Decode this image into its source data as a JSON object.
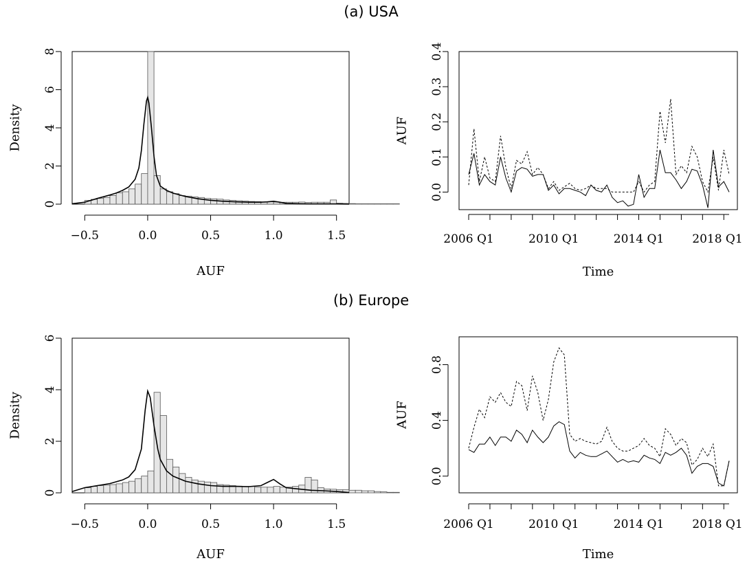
{
  "chart_data": [
    {
      "type": "histogram",
      "panel": "(a)",
      "title": "USA",
      "xlabel": "AUF",
      "ylabel": "Density",
      "xlim": [
        -0.6,
        1.6
      ],
      "ylim": [
        0,
        8
      ],
      "xticks": [
        -0.5,
        0.0,
        0.5,
        1.0,
        1.5
      ],
      "xtick_labels": [
        "−0.5",
        "0.0",
        "0.5",
        "1.0",
        "1.5"
      ],
      "yticks": [
        0,
        2,
        4,
        6,
        8
      ],
      "ytick_labels": [
        "0",
        "2",
        "4",
        "6",
        "8"
      ],
      "bin_width": 0.05,
      "bin_start": -0.5,
      "densities": [
        0.2,
        0.25,
        0.3,
        0.35,
        0.45,
        0.6,
        0.65,
        0.8,
        1.05,
        1.6,
        8.0,
        1.5,
        0.8,
        0.65,
        0.55,
        0.45,
        0.42,
        0.38,
        0.35,
        0.3,
        0.28,
        0.26,
        0.22,
        0.2,
        0.18,
        0.16,
        0.14,
        0.13,
        0.12,
        0.12,
        0.11,
        0.1,
        0.1,
        0.1,
        0.11,
        0.09,
        0.1,
        0.1,
        0.1,
        0.22,
        0.05,
        0.04,
        0.03,
        0.02,
        0.02,
        0.02,
        0.02,
        0.02,
        0.02,
        0.02
      ],
      "kde": {
        "x": [
          -0.6,
          -0.5,
          -0.4,
          -0.3,
          -0.25,
          -0.2,
          -0.15,
          -0.1,
          -0.07,
          -0.05,
          -0.03,
          -0.01,
          0.0,
          0.01,
          0.03,
          0.05,
          0.07,
          0.1,
          0.15,
          0.2,
          0.3,
          0.4,
          0.5,
          0.6,
          0.7,
          0.8,
          0.9,
          0.95,
          1.0,
          1.05,
          1.1,
          1.2,
          1.3,
          1.4,
          1.5,
          1.6
        ],
        "y": [
          0.02,
          0.1,
          0.3,
          0.48,
          0.58,
          0.72,
          0.9,
          1.3,
          1.9,
          2.8,
          4.2,
          5.4,
          5.6,
          5.3,
          4.0,
          2.5,
          1.5,
          0.95,
          0.72,
          0.58,
          0.4,
          0.28,
          0.2,
          0.15,
          0.12,
          0.1,
          0.1,
          0.12,
          0.15,
          0.1,
          0.04,
          0.02,
          0.01,
          0.01,
          0.01,
          0.0
        ]
      }
    },
    {
      "type": "line",
      "panel": "(a)",
      "title": "USA",
      "xlabel": "Time",
      "ylabel": "AUF",
      "ylim": [
        -0.05,
        0.4
      ],
      "yticks": [
        0.0,
        0.1,
        0.2,
        0.3,
        0.4
      ],
      "ytick_labels": [
        "0.0",
        "0.1",
        "0.2",
        "0.3",
        "0.4"
      ],
      "xticks": [
        0,
        16,
        32,
        48
      ],
      "xtick_labels": [
        "2006 Q1",
        "2010 Q1",
        "2014 Q1",
        "2018 Q1"
      ],
      "series": [
        {
          "style": "solid",
          "values": [
            0.05,
            0.11,
            0.02,
            0.05,
            0.03,
            0.02,
            0.1,
            0.04,
            0.0,
            0.06,
            0.07,
            0.065,
            0.045,
            0.05,
            0.05,
            0.005,
            0.02,
            -0.005,
            0.01,
            0.01,
            0.005,
            0.0,
            -0.01,
            0.02,
            0.005,
            0.0,
            0.02,
            -0.015,
            -0.03,
            -0.025,
            -0.04,
            -0.035,
            0.05,
            -0.015,
            0.01,
            0.01,
            0.12,
            0.055,
            0.055,
            0.035,
            0.01,
            0.03,
            0.065,
            0.06,
            0.02,
            -0.045,
            0.12,
            0.015,
            0.03,
            0.0
          ]
        },
        {
          "style": "dashed",
          "values": [
            0.02,
            0.18,
            0.03,
            0.1,
            0.04,
            0.03,
            0.16,
            0.07,
            0.01,
            0.09,
            0.08,
            0.115,
            0.05,
            0.07,
            0.05,
            0.01,
            0.03,
            0.005,
            0.015,
            0.025,
            0.01,
            0.005,
            0.01,
            0.02,
            0.01,
            0.01,
            0.01,
            0.0,
            0.0,
            0.0,
            0.0,
            0.0,
            0.03,
            0.0,
            0.02,
            0.03,
            0.23,
            0.14,
            0.265,
            0.05,
            0.075,
            0.055,
            0.13,
            0.1,
            0.03,
            0.0,
            0.1,
            0.005,
            0.12,
            0.05
          ]
        }
      ]
    },
    {
      "type": "histogram",
      "panel": "(b)",
      "title": "Europe",
      "xlabel": "AUF",
      "ylabel": "Density",
      "xlim": [
        -0.6,
        1.6
      ],
      "ylim": [
        0,
        6
      ],
      "xticks": [
        -0.5,
        0.0,
        0.5,
        1.0,
        1.5
      ],
      "xtick_labels": [
        "−0.5",
        "0.0",
        "0.5",
        "1.0",
        "1.5"
      ],
      "yticks": [
        0,
        2,
        4,
        6
      ],
      "ytick_labels": [
        "0",
        "2",
        "4",
        "6"
      ],
      "bin_width": 0.05,
      "bin_start": -0.5,
      "densities": [
        0.2,
        0.25,
        0.28,
        0.3,
        0.32,
        0.35,
        0.4,
        0.45,
        0.55,
        0.65,
        0.85,
        3.9,
        3.0,
        1.3,
        1.0,
        0.75,
        0.6,
        0.5,
        0.45,
        0.42,
        0.4,
        0.32,
        0.3,
        0.28,
        0.26,
        0.25,
        0.25,
        0.22,
        0.22,
        0.22,
        0.25,
        0.22,
        0.22,
        0.25,
        0.3,
        0.6,
        0.5,
        0.2,
        0.15,
        0.14,
        0.12,
        0.12,
        0.1,
        0.1,
        0.08,
        0.08,
        0.05,
        0.04,
        0.02,
        0.02
      ],
      "kde": {
        "x": [
          -0.6,
          -0.5,
          -0.4,
          -0.3,
          -0.2,
          -0.15,
          -0.1,
          -0.05,
          -0.02,
          0.0,
          0.02,
          0.05,
          0.08,
          0.1,
          0.15,
          0.2,
          0.3,
          0.4,
          0.5,
          0.6,
          0.7,
          0.8,
          0.9,
          0.95,
          1.0,
          1.05,
          1.1,
          1.2,
          1.3,
          1.4,
          1.5,
          1.6
        ],
        "y": [
          0.05,
          0.2,
          0.28,
          0.36,
          0.5,
          0.62,
          0.9,
          1.7,
          3.2,
          3.95,
          3.7,
          2.6,
          1.7,
          1.3,
          0.85,
          0.65,
          0.45,
          0.35,
          0.28,
          0.25,
          0.25,
          0.24,
          0.28,
          0.4,
          0.52,
          0.35,
          0.2,
          0.15,
          0.1,
          0.08,
          0.05,
          0.01
        ]
      }
    },
    {
      "type": "line",
      "panel": "(b)",
      "title": "Europe",
      "xlabel": "Time",
      "ylabel": "AUF",
      "ylim": [
        -0.12,
        1.0
      ],
      "yticks": [
        0.0,
        0.4,
        0.8
      ],
      "ytick_labels": [
        "0.0",
        "0.4",
        "0.8"
      ],
      "xticks": [
        0,
        16,
        32,
        48
      ],
      "xtick_labels": [
        "2006 Q1",
        "2010 Q1",
        "2014 Q1",
        "2018 Q1"
      ],
      "series": [
        {
          "style": "solid",
          "values": [
            0.19,
            0.17,
            0.23,
            0.23,
            0.28,
            0.22,
            0.28,
            0.28,
            0.25,
            0.33,
            0.3,
            0.24,
            0.33,
            0.28,
            0.24,
            0.28,
            0.36,
            0.39,
            0.37,
            0.18,
            0.13,
            0.17,
            0.15,
            0.14,
            0.14,
            0.16,
            0.18,
            0.14,
            0.1,
            0.12,
            0.1,
            0.11,
            0.1,
            0.15,
            0.13,
            0.12,
            0.09,
            0.17,
            0.15,
            0.17,
            0.2,
            0.15,
            0.02,
            0.07,
            0.09,
            0.09,
            0.07,
            -0.05,
            -0.07,
            0.11
          ]
        },
        {
          "style": "dashed",
          "values": [
            0.2,
            0.35,
            0.48,
            0.42,
            0.57,
            0.53,
            0.6,
            0.53,
            0.5,
            0.68,
            0.65,
            0.47,
            0.72,
            0.6,
            0.4,
            0.55,
            0.82,
            0.92,
            0.87,
            0.3,
            0.25,
            0.27,
            0.25,
            0.24,
            0.23,
            0.25,
            0.35,
            0.25,
            0.2,
            0.18,
            0.18,
            0.2,
            0.22,
            0.27,
            0.22,
            0.2,
            0.14,
            0.34,
            0.3,
            0.22,
            0.27,
            0.24,
            0.08,
            0.12,
            0.2,
            0.14,
            0.23,
            -0.07,
            -0.07,
            0.11
          ]
        }
      ]
    }
  ]
}
